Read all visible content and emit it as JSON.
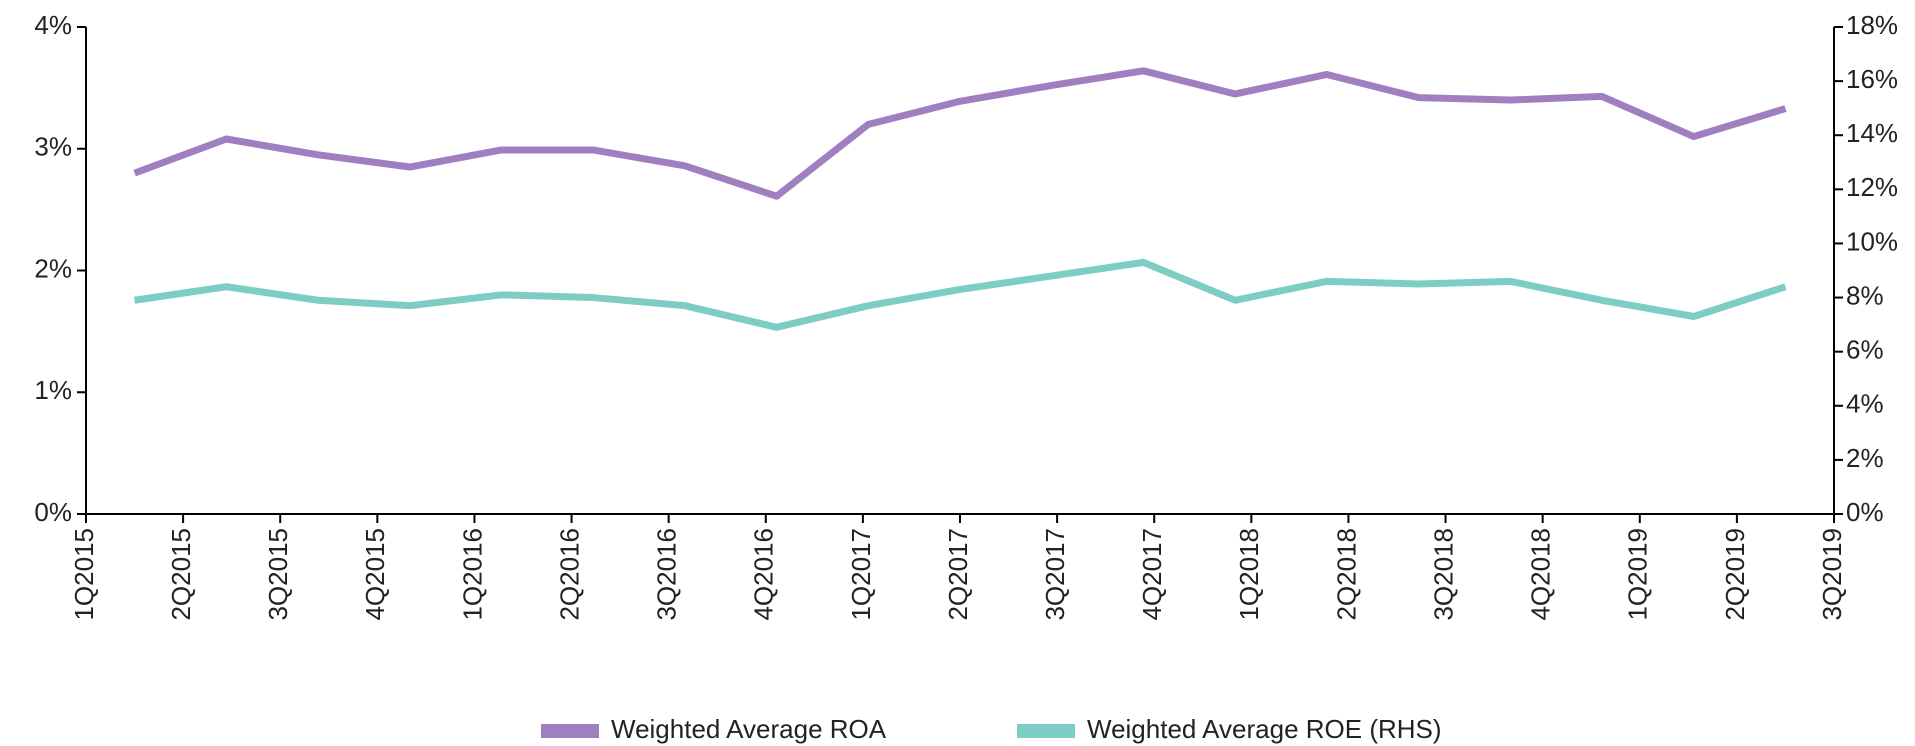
{
  "chart_data": {
    "type": "line",
    "categories": [
      "1Q2015",
      "2Q2015",
      "3Q2015",
      "4Q2015",
      "1Q2016",
      "2Q2016",
      "3Q2016",
      "4Q2016",
      "1Q2017",
      "2Q2017",
      "3Q2017",
      "4Q2017",
      "1Q2018",
      "2Q2018",
      "3Q2018",
      "4Q2018",
      "1Q2019",
      "2Q2019",
      "3Q2019"
    ],
    "series": [
      {
        "name": "Weighted Average ROA",
        "color": "#a07fc0",
        "values": [
          2.8,
          3.08,
          2.95,
          2.85,
          2.99,
          2.99,
          2.86,
          2.61,
          3.2,
          3.39,
          3.52,
          3.64,
          3.45,
          3.61,
          3.42,
          3.4,
          3.43,
          3.1,
          3.33
        ]
      },
      {
        "name": "Weighted Average ROE (RHS)",
        "color": "#7ecdc4",
        "axis": "y2",
        "values": [
          7.9,
          8.4,
          7.9,
          7.7,
          8.1,
          8.0,
          7.7,
          6.9,
          7.7,
          8.3,
          8.8,
          9.3,
          7.9,
          8.6,
          8.5,
          8.6,
          7.9,
          7.3,
          8.4
        ]
      }
    ],
    "ylim": [
      0,
      4
    ],
    "yticks": [
      {
        "value": 0,
        "label": "0%"
      },
      {
        "value": 1,
        "label": "1%"
      },
      {
        "value": 2,
        "label": "2%"
      },
      {
        "value": 3,
        "label": "3%"
      },
      {
        "value": 4,
        "label": "4%"
      }
    ],
    "y2lim": [
      0,
      18
    ],
    "y2ticks": [
      {
        "value": 0,
        "label": "0%"
      },
      {
        "value": 2,
        "label": "2%"
      },
      {
        "value": 4,
        "label": "4%"
      },
      {
        "value": 6,
        "label": "6%"
      },
      {
        "value": 8,
        "label": "8%"
      },
      {
        "value": 10,
        "label": "10%"
      },
      {
        "value": 12,
        "label": "12%"
      },
      {
        "value": 14,
        "label": "14%"
      },
      {
        "value": 16,
        "label": "16%"
      },
      {
        "value": 18,
        "label": "18%"
      }
    ],
    "legend": "bottom"
  }
}
